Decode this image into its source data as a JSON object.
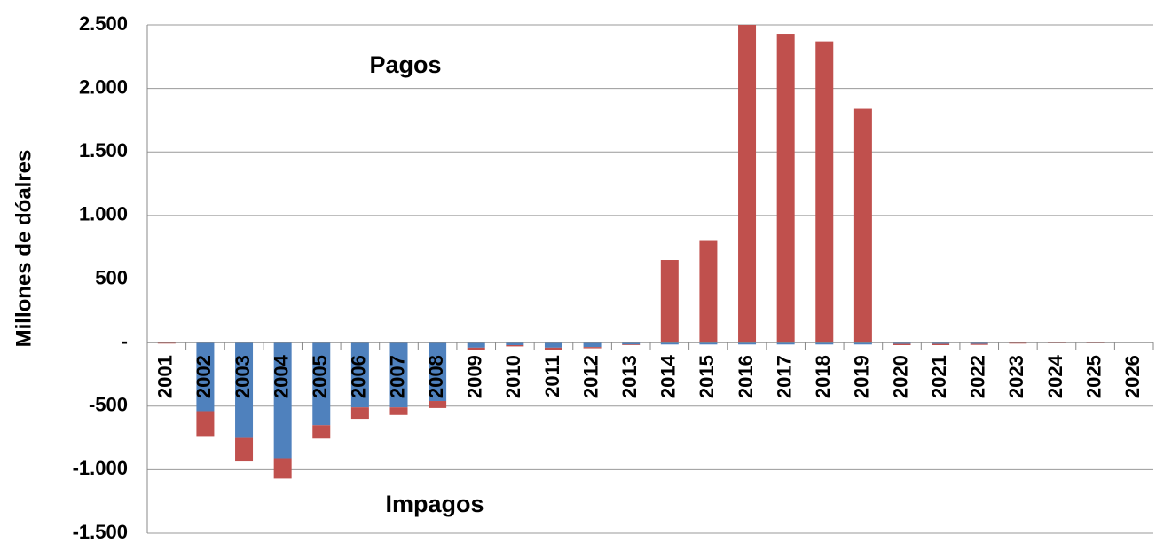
{
  "chart_data": {
    "type": "stacked_bar",
    "y_label": "Millones de dóalres",
    "annotations": [
      "Pagos",
      "Impagos"
    ],
    "categories": [
      "2001",
      "2002",
      "2003",
      "2004",
      "2005",
      "2006",
      "2007",
      "2008",
      "2009",
      "2010",
      "2011",
      "2012",
      "2013",
      "2014",
      "2015",
      "2016",
      "2017",
      "2018",
      "2019",
      "2020",
      "2021",
      "2022",
      "2023",
      "2024",
      "2025",
      "2026"
    ],
    "series": [
      {
        "color": "#4f81bd",
        "values": [
          0,
          -540,
          -750,
          -910,
          -650,
          -510,
          -510,
          -460,
          -40,
          -20,
          -40,
          -35,
          -15,
          -15,
          -15,
          -15,
          -15,
          -15,
          -15,
          -10,
          -10,
          -10,
          0,
          0,
          0,
          0
        ]
      },
      {
        "color": "#c0504d",
        "values": [
          -8,
          -195,
          -185,
          -160,
          -105,
          -90,
          -60,
          -55,
          -15,
          -10,
          -15,
          -10,
          -5,
          650,
          800,
          2500,
          2430,
          2370,
          1840,
          -10,
          -10,
          -8,
          -8,
          -5,
          -5,
          0
        ]
      }
    ],
    "ylim": [
      -1500,
      2500
    ],
    "yticks": [
      {
        "value": -1500,
        "label": "-1.500"
      },
      {
        "value": -1000,
        "label": "-1.000"
      },
      -500,
      {
        "value": 0,
        "label": "-"
      },
      500,
      {
        "value": 1000,
        "label": "1.000"
      },
      {
        "value": 1500,
        "label": "1.500"
      },
      {
        "value": 2000,
        "label": "2.000"
      },
      {
        "value": 2500,
        "label": "2.500"
      }
    ],
    "grid": true
  }
}
